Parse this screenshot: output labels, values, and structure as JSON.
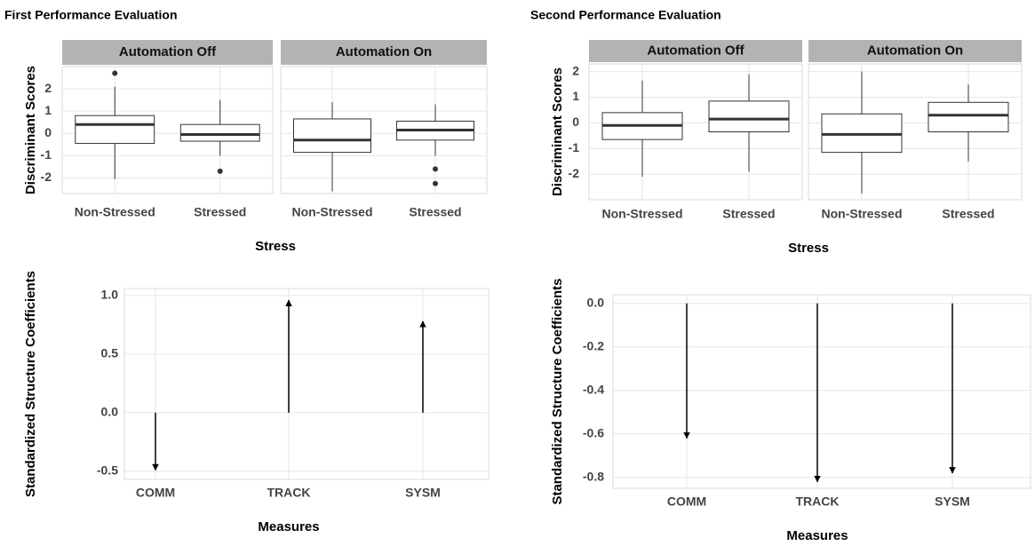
{
  "chart_data": [
    {
      "type": "box",
      "title": "First Performance Evaluation",
      "ylabel": "Discriminant Scores",
      "xlabel": "Stress",
      "ylim": [
        -2.7,
        3.0
      ],
      "yticks": [
        -2,
        -1,
        0,
        1,
        2
      ],
      "grid": true,
      "panels": [
        {
          "name": "Automation Off",
          "categories": [
            "Non-Stressed",
            "Stressed"
          ],
          "boxes": [
            {
              "whislo": -2.05,
              "q1": -0.45,
              "med": 0.4,
              "q3": 0.8,
              "whishi": 2.1,
              "fliers": [
                2.7
              ]
            },
            {
              "whislo": -1.0,
              "q1": -0.35,
              "med": -0.05,
              "q3": 0.4,
              "whishi": 1.5,
              "fliers": [
                -1.7
              ]
            }
          ]
        },
        {
          "name": "Automation On",
          "categories": [
            "Non-Stressed",
            "Stressed"
          ],
          "boxes": [
            {
              "whislo": -2.6,
              "q1": -0.85,
              "med": -0.3,
              "q3": 0.65,
              "whishi": 1.4,
              "fliers": []
            },
            {
              "whislo": -1.0,
              "q1": -0.3,
              "med": 0.15,
              "q3": 0.55,
              "whishi": 1.3,
              "fliers": [
                -1.6,
                -2.25
              ]
            }
          ]
        }
      ]
    },
    {
      "type": "arrow",
      "ylabel": "Standardized Structure Coefficients",
      "xlabel": "Measures",
      "categories": [
        "COMM",
        "TRACK",
        "SYSM"
      ],
      "values": [
        -0.49,
        0.96,
        0.78
      ],
      "ylim": [
        -0.57,
        1.06
      ],
      "yticks": [
        -0.5,
        {
          "value": 0,
          "label": "0.0"
        },
        0.5,
        {
          "value": 1,
          "label": "1.0"
        }
      ],
      "grid": true
    },
    {
      "type": "box",
      "title": "Second Performance Evaluation",
      "ylabel": "Discriminant Scores",
      "xlabel": "Stress",
      "ylim": [
        -3.0,
        2.3
      ],
      "yticks": [
        -2,
        -1,
        0,
        1,
        2
      ],
      "grid": true,
      "panels": [
        {
          "name": "Automation Off",
          "categories": [
            "Non-Stressed",
            "Stressed"
          ],
          "boxes": [
            {
              "whislo": -2.1,
              "q1": -0.65,
              "med": -0.1,
              "q3": 0.4,
              "whishi": 1.65,
              "fliers": []
            },
            {
              "whislo": -1.9,
              "q1": -0.35,
              "med": 0.15,
              "q3": 0.85,
              "whishi": 1.9,
              "fliers": []
            }
          ]
        },
        {
          "name": "Automation On",
          "categories": [
            "Non-Stressed",
            "Stressed"
          ],
          "boxes": [
            {
              "whislo": -2.75,
              "q1": -1.15,
              "med": -0.45,
              "q3": 0.35,
              "whishi": 2.0,
              "fliers": []
            },
            {
              "whislo": -1.5,
              "q1": -0.35,
              "med": 0.3,
              "q3": 0.8,
              "whishi": 1.5,
              "fliers": []
            }
          ]
        }
      ]
    },
    {
      "type": "arrow",
      "ylabel": "Standardized Structure Coefficients",
      "xlabel": "Measures",
      "categories": [
        "COMM",
        "TRACK",
        "SYSM"
      ],
      "values": [
        -0.62,
        -0.82,
        -0.78
      ],
      "ylim": [
        -0.85,
        0.04
      ],
      "yticks": [
        -0.8,
        -0.6,
        -0.4,
        -0.2,
        {
          "value": 0,
          "label": "0.0"
        }
      ],
      "grid": true
    }
  ]
}
